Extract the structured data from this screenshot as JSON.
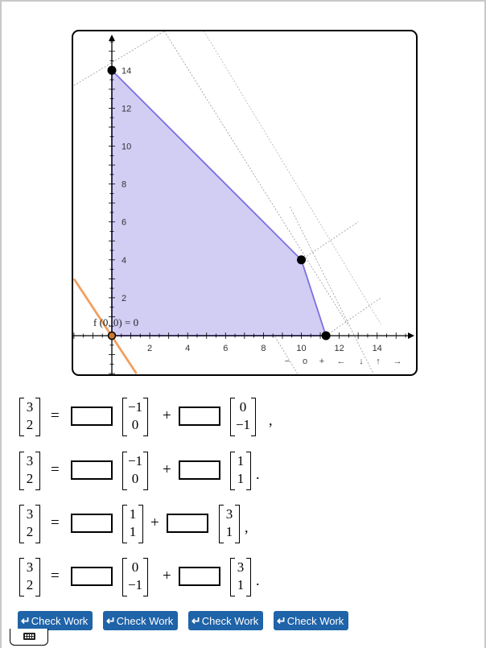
{
  "graph": {
    "x_ticks": [
      "2",
      "4",
      "6",
      "8",
      "10",
      "12",
      "14"
    ],
    "y_ticks": [
      "2",
      "4",
      "6",
      "8",
      "10",
      "12",
      "14"
    ],
    "function_label": "f (0, 0) = 0",
    "controls": [
      "−",
      "o",
      "+",
      "←",
      "↓",
      "↑",
      "→"
    ],
    "feasible_vertices": [
      [
        0,
        0
      ],
      [
        0,
        14
      ],
      [
        10,
        4
      ],
      [
        11.3,
        0
      ]
    ],
    "highlighted_point": [
      0,
      0
    ],
    "colors": {
      "region_fill": "#cfcaf2",
      "region_stroke": "#7b6fe0",
      "objective_line": "#f0a060",
      "point": "#000000",
      "highlight_point": "#c77a35"
    }
  },
  "equations": [
    {
      "lhs": [
        "3",
        "2"
      ],
      "v1": [
        "−1",
        "0"
      ],
      "v2": [
        "0",
        "−1"
      ],
      "end": ","
    },
    {
      "lhs": [
        "3",
        "2"
      ],
      "v1": [
        "−1",
        "0"
      ],
      "v2": [
        "1",
        "1"
      ],
      "end": "."
    },
    {
      "lhs": [
        "3",
        "2"
      ],
      "v1": [
        "1",
        "1"
      ],
      "v2": [
        "3",
        "1"
      ],
      "end": ","
    },
    {
      "lhs": [
        "3",
        "2"
      ],
      "v1": [
        "0",
        "−1"
      ],
      "v2": [
        "3",
        "1"
      ],
      "end": "."
    }
  ],
  "symbols": {
    "equals": "=",
    "plus": "+"
  },
  "buttons": {
    "return_icon": "↵",
    "check_work": "Check Work"
  },
  "keyboard": {
    "icon": "keyboard-icon"
  }
}
